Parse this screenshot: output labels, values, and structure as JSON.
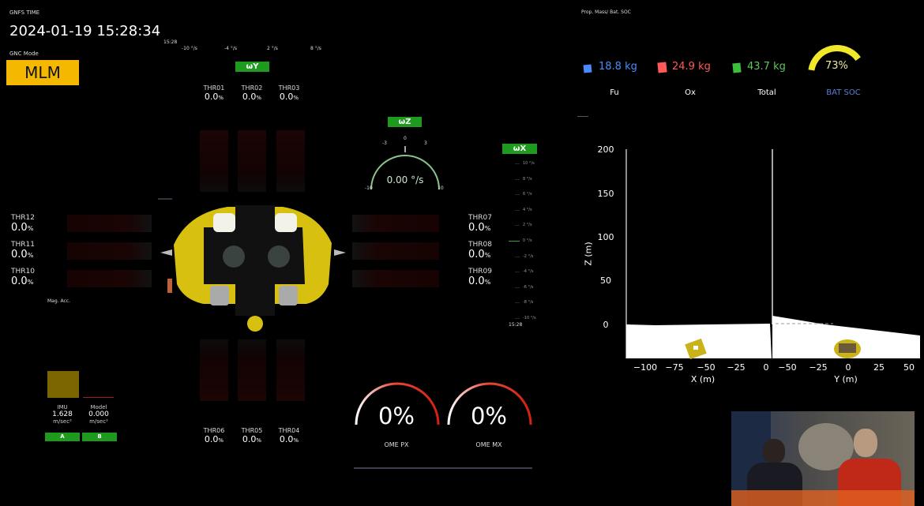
{
  "gnfs_time": {
    "label": "GNFS TIME",
    "value": "2024-01-19 15:28:34"
  },
  "gnc_mode": {
    "label": "GNC Mode",
    "value": "MLM",
    "color": "#f5b800"
  },
  "omega_y": {
    "label": "ωY",
    "time_label": "15:28",
    "ticks": [
      "-10 °/s",
      "-4 °/s",
      "2 °/s",
      "8 °/s"
    ]
  },
  "omega_z": {
    "label": "ωZ",
    "value": "0.00 °/s",
    "ticks": [
      "-3",
      "0",
      "3",
      "-10",
      "10"
    ]
  },
  "omega_x": {
    "label": "ωX",
    "time_label": "15:28",
    "ticks": [
      "10 °/s",
      "8 °/s",
      "6 °/s",
      "4 °/s",
      "2 °/s",
      "0 °/s",
      "-2 °/s",
      "-4 °/s",
      "-6 °/s",
      "-8 °/s",
      "-10 °/s"
    ]
  },
  "thrusters": {
    "top": [
      {
        "name": "THR01",
        "value": "0.0"
      },
      {
        "name": "THR02",
        "value": "0.0"
      },
      {
        "name": "THR03",
        "value": "0.0"
      }
    ],
    "bottom": [
      {
        "name": "THR06",
        "value": "0.0"
      },
      {
        "name": "THR05",
        "value": "0.0"
      },
      {
        "name": "THR04",
        "value": "0.0"
      }
    ],
    "left": [
      {
        "name": "THR12",
        "value": "0.0"
      },
      {
        "name": "THR11",
        "value": "0.0"
      },
      {
        "name": "THR10",
        "value": "0.0"
      }
    ],
    "right": [
      {
        "name": "THR07",
        "value": "0.0"
      },
      {
        "name": "THR08",
        "value": "0.0"
      },
      {
        "name": "THR09",
        "value": "0.0"
      }
    ],
    "unit": "%"
  },
  "mag_acc": {
    "title": "Mag. Acc.",
    "imu": {
      "label": "IMU",
      "value": "1.628",
      "unit": "m/sec²",
      "button": "A",
      "color": "#7a6500"
    },
    "model": {
      "label": "Model",
      "value": "0.000",
      "unit": "m/sec²",
      "button": "B"
    }
  },
  "ome": [
    {
      "label": "OME PX",
      "value": "0%"
    },
    {
      "label": "OME MX",
      "value": "0%"
    }
  ],
  "prop": {
    "title": "Prop. Mass/ Bat. SOC",
    "fu": {
      "label": "Fu",
      "value": "18.8 kg",
      "color": "#4a8cff"
    },
    "ox": {
      "label": "Ox",
      "value": "24.9 kg",
      "color": "#ff5a5a"
    },
    "total": {
      "label": "Total",
      "value": "43.7 kg",
      "color": "#5ec45e"
    },
    "bat_soc": {
      "label": "BAT SOC",
      "value": "73%",
      "percent": 73,
      "color": "#f2e82a"
    }
  },
  "trajectory": {
    "zlabel": "Z (m)",
    "xlabel": "X (m)",
    "ylabel": "Y (m)",
    "z_ticks": [
      "200",
      "150",
      "100",
      "50",
      "0"
    ],
    "x_ticks": [
      "−100",
      "−75",
      "−50",
      "−25",
      "0"
    ],
    "y_ticks": [
      "−50",
      "−25",
      "0",
      "25",
      "50"
    ]
  }
}
